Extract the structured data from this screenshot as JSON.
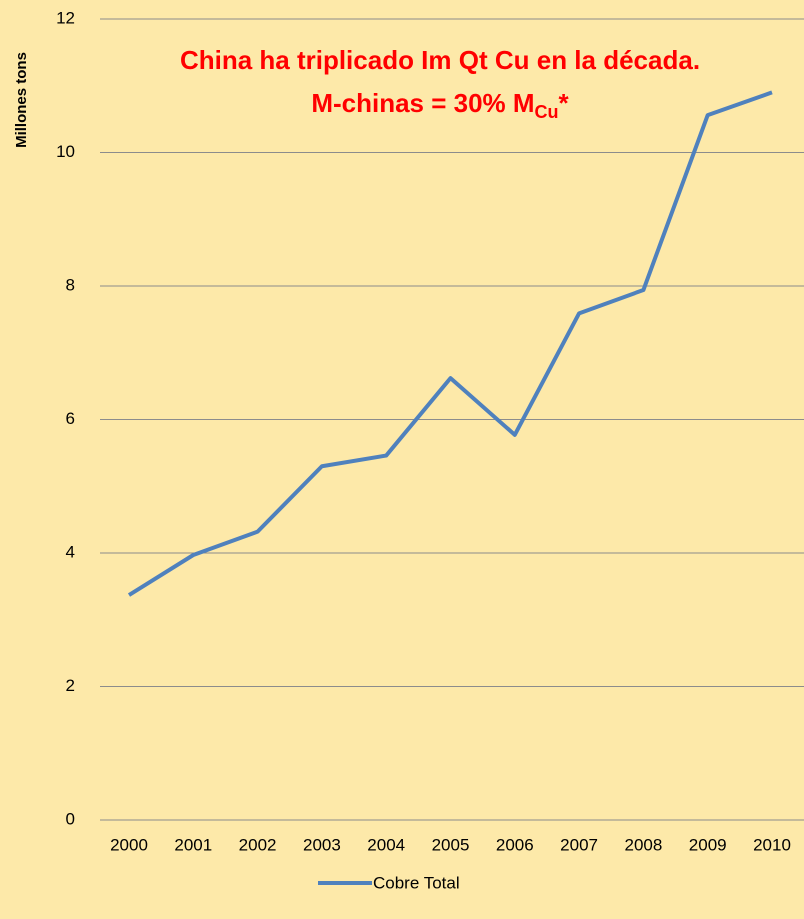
{
  "chart_data": {
    "type": "line",
    "title": "China ha triplicado Im Qt Cu en la década.",
    "subtitle": {
      "text": "M-chinas = 30% M",
      "subscript": "Cu",
      "suffix": "*"
    },
    "y_label": "Millones tons",
    "categories": [
      "2000",
      "2001",
      "2002",
      "2003",
      "2004",
      "2005",
      "2006",
      "2007",
      "2008",
      "2009",
      "2010"
    ],
    "series": [
      {
        "name": "Cobre Total",
        "color": "#4f81bd",
        "values": [
          3.37,
          3.97,
          4.32,
          5.3,
          5.46,
          6.62,
          5.77,
          7.59,
          7.94,
          10.56,
          10.9
        ]
      }
    ],
    "ylim": [
      0,
      12
    ],
    "yticks": [
      0,
      2,
      4,
      6,
      8,
      10,
      12
    ],
    "grid": true,
    "legend": "bottom"
  }
}
